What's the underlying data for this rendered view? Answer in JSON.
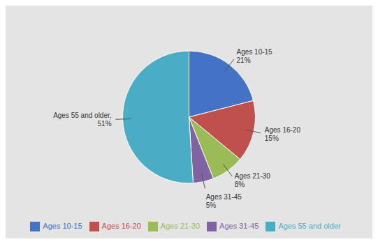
{
  "chart_data": {
    "type": "pie",
    "categories": [
      "Ages 10-15",
      "Ages 16-20",
      "Ages 21-30",
      "Ages 31-45",
      "Ages 55 and older"
    ],
    "values": [
      21,
      15,
      8,
      5,
      51
    ],
    "value_labels": [
      "Ages 10-15\n21%",
      "Ages 16-20\n15%",
      "Ages 21-30\n8%",
      "Ages 31-45\n5%",
      "Ages 55 and older,\n51%"
    ],
    "colors": [
      "#4472C4",
      "#C0504D",
      "#9BBB59",
      "#8064A2",
      "#4BACC6"
    ],
    "data_labels": true,
    "legend": "bottom"
  }
}
